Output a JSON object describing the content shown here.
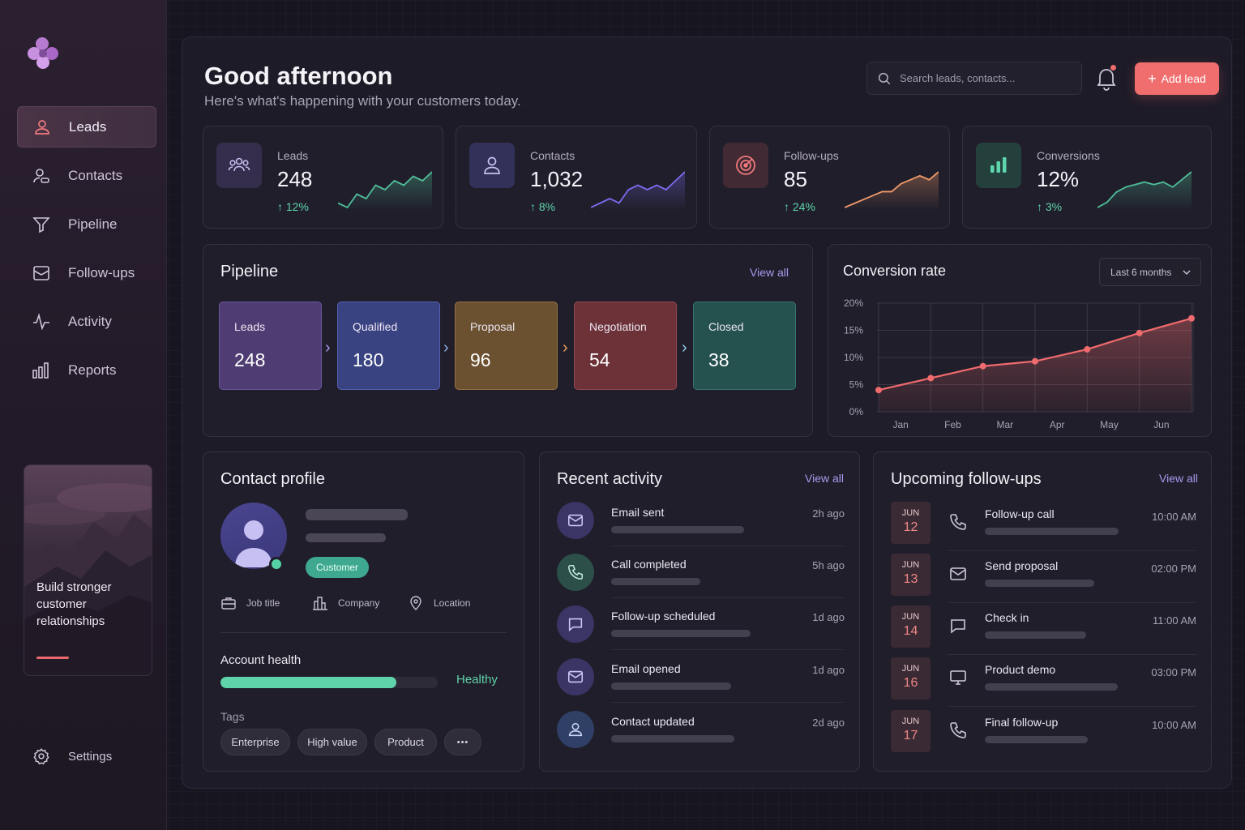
{
  "sidebar": {
    "items": [
      {
        "label": "Leads",
        "icon": "user-icon",
        "active": true
      },
      {
        "label": "Contacts",
        "icon": "users-icon"
      },
      {
        "label": "Pipeline",
        "icon": "funnel-icon"
      },
      {
        "label": "Follow-ups",
        "icon": "inbox-icon"
      },
      {
        "label": "Activity",
        "icon": "activity-icon"
      },
      {
        "label": "Reports",
        "icon": "bar-chart-icon"
      }
    ],
    "promo": "Build stronger customer relationships",
    "settings": "Settings"
  },
  "header": {
    "title": "Good afternoon",
    "subtitle": "Here's what's happening with your customers today.",
    "search_placeholder": "Search leads, contacts...",
    "add_button": "Add lead"
  },
  "kpis": [
    {
      "label": "Leads",
      "value": "248",
      "change": "12%",
      "color": "#4fbf9a",
      "trend": [
        2,
        1,
        4,
        3,
        6,
        5,
        7,
        6,
        8,
        7,
        9
      ]
    },
    {
      "label": "Contacts",
      "value": "1,032",
      "change": "8%",
      "color": "#7a6cf0",
      "trend": [
        1,
        2,
        3,
        2,
        5,
        6,
        5,
        6,
        5,
        7,
        9
      ]
    },
    {
      "label": "Follow-ups",
      "value": "85",
      "change": "24%",
      "color": "#f09a6a",
      "trend": [
        1,
        2,
        3,
        4,
        5,
        5,
        7,
        8,
        9,
        8,
        10
      ]
    },
    {
      "label": "Conversions",
      "value": "12%",
      "change": "3%",
      "color": "#4fbf9a",
      "trend": [
        1,
        2,
        4,
        5,
        5.5,
        6,
        5.5,
        6,
        5,
        6.5,
        8
      ]
    }
  ],
  "pipeline": {
    "title": "Pipeline",
    "view_all": "View all",
    "stages": [
      {
        "label": "Leads",
        "value": "248",
        "color": "#4f3c72",
        "border": "#6a56a0",
        "chev": "#a897e8"
      },
      {
        "label": "Qualified",
        "value": "180",
        "color": "#3a4382",
        "border": "#5561b0",
        "chev": "#8fb0e8"
      },
      {
        "label": "Proposal",
        "value": "96",
        "color": "#6b5130",
        "border": "#957344",
        "chev": "#f0a25a"
      },
      {
        "label": "Negotiation",
        "value": "54",
        "color": "#6c3238",
        "border": "#954852",
        "chev": "#8fd0e8"
      },
      {
        "label": "Closed",
        "value": "38",
        "color": "#25514f",
        "border": "#377472",
        "chev": ""
      }
    ]
  },
  "conversion": {
    "title": "Conversion rate",
    "range": "Last 6 months"
  },
  "chart_data": {
    "type": "line",
    "title": "Conversion rate",
    "x": [
      "",
      "Jan",
      "Feb",
      "Mar",
      "Apr",
      "May",
      "Jun"
    ],
    "x_ticks": [
      "Jan",
      "Feb",
      "Mar",
      "Apr",
      "May",
      "Jun"
    ],
    "series": [
      {
        "values": [
          4,
          6.2,
          8.4,
          9.3,
          11.5,
          14.5,
          17.2
        ],
        "color": "#f06b6e"
      }
    ],
    "y_ticks": [
      "0%",
      "5%",
      "10%",
      "15%",
      "20%"
    ],
    "ylim": [
      0,
      20
    ],
    "grid": true
  },
  "profile": {
    "title": "Contact profile",
    "badge": "Customer",
    "job": "Job title",
    "company": "Company",
    "location": "Location",
    "health_label": "Account health",
    "health_status": "Healthy",
    "health_value": 0.81,
    "tags_label": "Tags",
    "tags": [
      "Enterprise",
      "High value",
      "Product",
      "•••"
    ]
  },
  "activity": {
    "title": "Recent activity",
    "view_all": "View all",
    "items": [
      {
        "label": "Email sent",
        "time": "2h ago",
        "icon": "mail-icon",
        "bg": "#3b3566",
        "stroke": "#cfc8f6"
      },
      {
        "label": "Call completed",
        "time": "5h ago",
        "icon": "phone-icon",
        "bg": "#2c4f4a",
        "stroke": "#bfe8dc"
      },
      {
        "label": "Follow-up scheduled",
        "time": "1d ago",
        "icon": "chat-icon",
        "bg": "#3b3566",
        "stroke": "#cfc8f6"
      },
      {
        "label": "Email opened",
        "time": "1d ago",
        "icon": "mail-icon",
        "bg": "#3b3566",
        "stroke": "#cfc8f6"
      },
      {
        "label": "Contact updated",
        "time": "2d ago",
        "icon": "user-icon",
        "bg": "#2f3f66",
        "stroke": "#c8d4f6"
      }
    ]
  },
  "followups": {
    "title": "Upcoming follow-ups",
    "view_all": "View all",
    "items": [
      {
        "month": "JUN",
        "day": "12",
        "label": "Follow-up call",
        "time": "10:00 AM",
        "icon": "phone-icon"
      },
      {
        "month": "JUN",
        "day": "13",
        "label": "Send proposal",
        "time": "02:00 PM",
        "icon": "mail-icon"
      },
      {
        "month": "JUN",
        "day": "14",
        "label": "Check in",
        "time": "11:00 AM",
        "icon": "chat-icon"
      },
      {
        "month": "JUN",
        "day": "16",
        "label": "Product demo",
        "time": "03:00 PM",
        "icon": "monitor-icon"
      },
      {
        "month": "JUN",
        "day": "17",
        "label": "Final follow-up",
        "time": "10:00 AM",
        "icon": "phone-icon"
      }
    ]
  }
}
